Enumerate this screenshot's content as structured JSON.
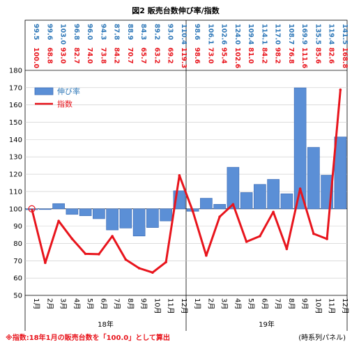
{
  "chart_data": {
    "type": "bar",
    "title": "図2 販売台数伸び率/指数",
    "categories": [
      "1月",
      "2月",
      "3月",
      "4月",
      "5月",
      "6月",
      "7月",
      "8月",
      "9月",
      "10月",
      "11月",
      "12月",
      "1月",
      "2月",
      "3月",
      "4月",
      "5月",
      "6月",
      "7月",
      "8月",
      "9月",
      "10月",
      "11月",
      "12月"
    ],
    "year_groups": [
      {
        "label": "18年",
        "count": 12
      },
      {
        "label": "19年",
        "count": 12
      }
    ],
    "ylim": [
      50,
      180
    ],
    "yticks": [
      50,
      60,
      70,
      80,
      90,
      100,
      110,
      120,
      130,
      140,
      150,
      160,
      170,
      180
    ],
    "baseline": 100,
    "series": [
      {
        "name": "伸び率",
        "kind": "bar",
        "color": "#5b8fd6",
        "values": [
          99.5,
          99.6,
          103.0,
          96.8,
          96.0,
          94.3,
          87.8,
          88.9,
          84.3,
          89.2,
          93.0,
          110.4,
          98.6,
          106.1,
          102.6,
          124.0,
          109.4,
          114.1,
          117.0,
          108.7,
          169.9,
          135.5,
          119.4,
          141.5
        ],
        "labels": [
          "99.5",
          "99.6",
          "103.0",
          "96.8",
          "96.0",
          "94.3",
          "87.8",
          "88.9",
          "84.3",
          "89.2",
          "93.0",
          "110.4",
          "98.6",
          "106.1",
          "102.6",
          "124.0",
          "109.4",
          "114.1",
          "117.0",
          "108.7",
          "169.9",
          "135.5",
          "119.4",
          "141.5"
        ]
      },
      {
        "name": "指数",
        "kind": "line",
        "color": "#e8141c",
        "values": [
          100.0,
          68.8,
          93.0,
          82.7,
          74.0,
          73.8,
          84.2,
          70.7,
          65.7,
          63.2,
          69.2,
          119.3,
          98.6,
          73.0,
          95.4,
          102.6,
          81.0,
          84.2,
          98.2,
          76.8,
          111.6,
          85.6,
          82.6,
          168.8
        ],
        "labels": [
          "100.0",
          "68.8",
          "93.0",
          "82.7",
          "74.0",
          "73.8",
          "84.2",
          "70.7",
          "65.7",
          "63.2",
          "69.2",
          "119.3",
          "98.6",
          "73.0",
          "95.4",
          "102.6",
          "81.0",
          "84.2",
          "98.2",
          "76.8",
          "111.6",
          "85.6",
          "82.6",
          "168.8"
        ]
      }
    ],
    "legend": {
      "position": "top-left"
    },
    "grid": true
  },
  "footer": {
    "note": "※指数:18年1月の販売台数を「100.0」として算出",
    "source": "(時系列パネル)"
  },
  "colors": {
    "bar_fill": "#5b8fd6",
    "bar_edge": "#3f6fb8",
    "line": "#e8141c",
    "bar_label": "#2f78b8",
    "line_label": "#e8141c",
    "grid": "#c8c8c8",
    "note": "#e8141c"
  }
}
